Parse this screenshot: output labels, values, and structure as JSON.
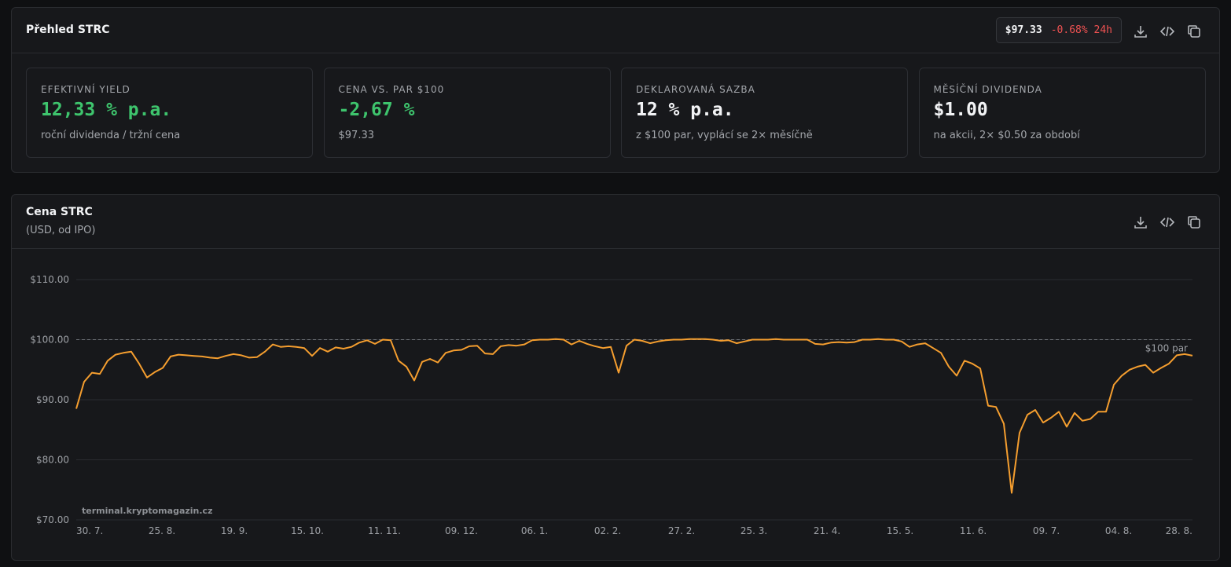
{
  "overview": {
    "title": "Přehled STRC",
    "price": "$97.33",
    "change": "-0.68% 24h",
    "cards": [
      {
        "label": "EFEKTIVNÍ YIELD",
        "value": "12,33 % p.a.",
        "note": "roční dividenda / tržní cena"
      },
      {
        "label": "CENA VS. PAR $100",
        "value": "-2,67 %",
        "note": "$97.33"
      },
      {
        "label": "DEKLAROVANÁ SAZBA",
        "value": "12 % p.a.",
        "note": "z $100 par, vyplácí se 2× měsíčně"
      },
      {
        "label": "MĚSÍČNÍ DIVIDENDA",
        "value": "$1.00",
        "note": "na akcii, 2× $0.50 za období"
      }
    ]
  },
  "chart_data": {
    "type": "line",
    "title": "Cena STRC",
    "subtitle": "(USD, od IPO)",
    "watermark": "terminal.kryptomagazin.cz",
    "ref_line": {
      "value": 100,
      "label": "$100 par"
    },
    "series": [
      {
        "color": "#f59e2f",
        "values": [
          88.5,
          93.0,
          94.5,
          94.3,
          96.5,
          97.5,
          97.8,
          98.0,
          96.0,
          93.7,
          94.6,
          95.3,
          97.2,
          97.5,
          97.4,
          97.3,
          97.2,
          97.0,
          96.9,
          97.3,
          97.6,
          97.4,
          97.0,
          97.1,
          98.0,
          99.2,
          98.8,
          98.9,
          98.8,
          98.6,
          97.3,
          98.6,
          98.0,
          98.7,
          98.5,
          98.8,
          99.5,
          99.9,
          99.3,
          100.0,
          99.9,
          96.5,
          95.5,
          93.2,
          96.3,
          96.8,
          96.2,
          97.8,
          98.2,
          98.3,
          98.9,
          99.0,
          97.7,
          97.6,
          98.9,
          99.1,
          99.0,
          99.2,
          99.9,
          100.0,
          100.0,
          100.1,
          100.0,
          99.2,
          99.8,
          99.3,
          98.9,
          98.6,
          98.8,
          94.5,
          99.0,
          100.0,
          99.8,
          99.4,
          99.7,
          99.9,
          100.0,
          100.0,
          100.1,
          100.1,
          100.1,
          100.0,
          99.8,
          99.9,
          99.4,
          99.7,
          100.0,
          100.0,
          100.0,
          100.1,
          100.0,
          100.0,
          100.0,
          100.0,
          99.3,
          99.2,
          99.5,
          99.6,
          99.5,
          99.6,
          100.0,
          100.0,
          100.1,
          100.0,
          100.0,
          99.7,
          98.8,
          99.2,
          99.4,
          98.6,
          97.8,
          95.5,
          94.0,
          96.5,
          96.0,
          95.2,
          89.0,
          88.8,
          86.0,
          74.5,
          84.5,
          87.5,
          88.3,
          86.2,
          87.0,
          88.0,
          85.5,
          87.8,
          86.5,
          86.8,
          88.0,
          88.0,
          92.5,
          94.0,
          95.0,
          95.5,
          95.8,
          94.5,
          95.3,
          96.0,
          97.4,
          97.6,
          97.33
        ]
      }
    ],
    "xlim": [
      0,
      142
    ],
    "xticks": [
      {
        "value": 0,
        "label": "30. 7."
      },
      {
        "value": 10.9,
        "label": "25. 8."
      },
      {
        "value": 20.1,
        "label": "19. 9."
      },
      {
        "value": 29.4,
        "label": "15. 10."
      },
      {
        "value": 39.2,
        "label": "11. 11."
      },
      {
        "value": 49,
        "label": "09. 12."
      },
      {
        "value": 58.3,
        "label": "06. 1."
      },
      {
        "value": 67.6,
        "label": "02. 2."
      },
      {
        "value": 77,
        "label": "27. 2."
      },
      {
        "value": 86.2,
        "label": "25. 3."
      },
      {
        "value": 95.5,
        "label": "21. 4."
      },
      {
        "value": 104.8,
        "label": "15. 5."
      },
      {
        "value": 114.1,
        "label": "11. 6."
      },
      {
        "value": 123.4,
        "label": "09. 7."
      },
      {
        "value": 132.6,
        "label": "04. 8."
      },
      {
        "value": 142,
        "label": "28. 8."
      }
    ],
    "ylim": [
      70,
      110
    ],
    "yticks": [
      {
        "value": 70,
        "label": "$70.00"
      },
      {
        "value": 80,
        "label": "$80.00"
      },
      {
        "value": 90,
        "label": "$90.00"
      },
      {
        "value": 100,
        "label": "$100.00"
      },
      {
        "value": 110,
        "label": "$110.00"
      }
    ],
    "grid": true
  }
}
